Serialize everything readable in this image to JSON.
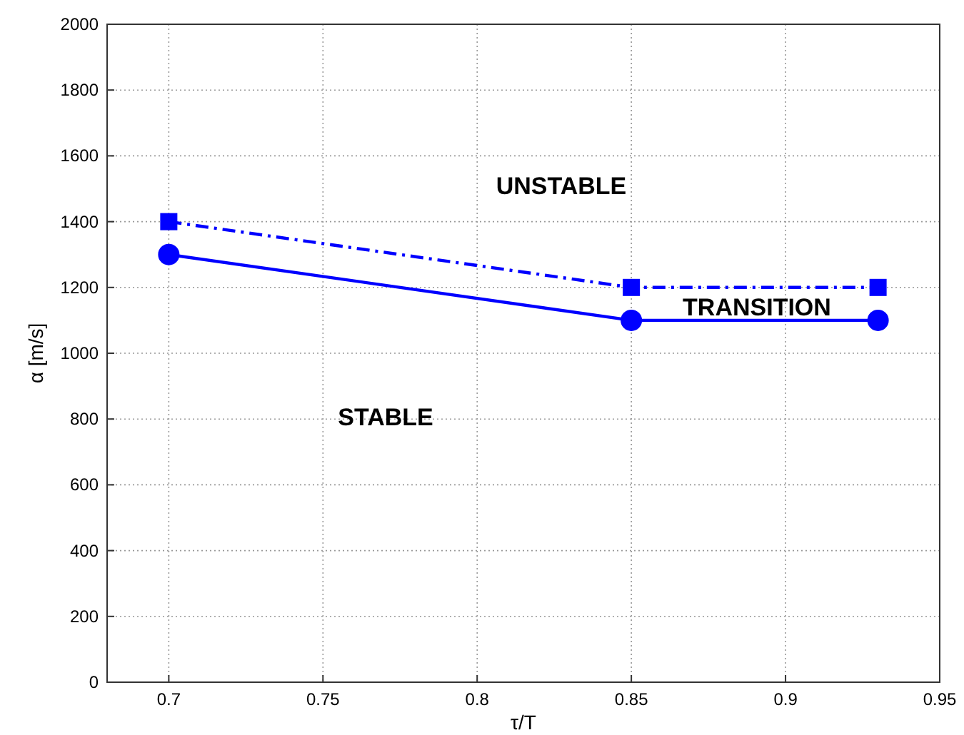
{
  "chart_data": {
    "type": "line",
    "xlabel": "τ/T",
    "ylabel": "α [m/s]",
    "x": [
      0.7,
      0.85,
      0.93
    ],
    "series": [
      {
        "color": "#0000ff",
        "values": [
          1400,
          1200,
          1200
        ],
        "marker": "square",
        "line_style": "dashed"
      },
      {
        "color": "#0000ff",
        "values": [
          1300,
          1100,
          1100
        ],
        "marker": "circle",
        "line_style": "solid"
      }
    ],
    "xlim": [
      0.68,
      0.95
    ],
    "xticks": [
      0.7,
      0.75,
      0.8,
      0.85,
      0.9,
      0.95
    ],
    "ylim": [
      0,
      2000
    ],
    "yticks": [
      0,
      200,
      400,
      600,
      800,
      1000,
      1200,
      1400,
      1600,
      1800,
      2000
    ],
    "grid": true,
    "annotations": [
      "UNSTABLE",
      "TRANSITION",
      "STABLE"
    ]
  }
}
